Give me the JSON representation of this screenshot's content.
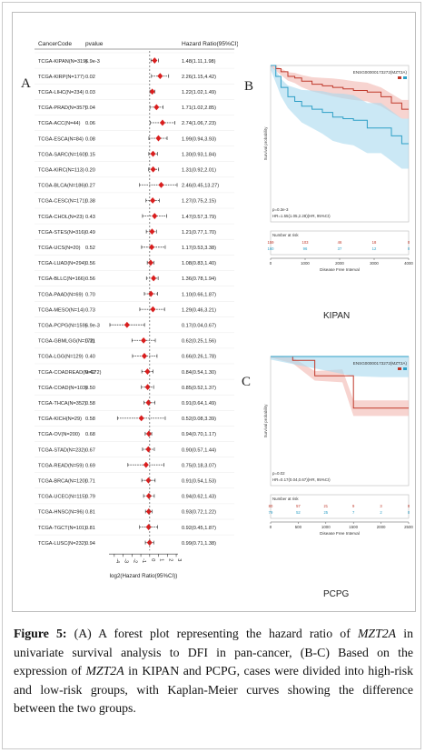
{
  "caption": {
    "label": "Figure 5:",
    "part1": "(A) A forest plot representing the hazard ratio of",
    "gene": "MZT2A",
    "part2": "in univariate survival analysis to DFI in pan-cancer, (B-C) Based on the expression of",
    "part3": "in KIPAN and PCPG, cases were divided into high-risk and low-risk groups, with Kaplan-Meier curves showing the difference between the two groups."
  },
  "panels": {
    "a": "A",
    "b": "B",
    "c": "C"
  },
  "chart_data": [
    {
      "type": "scatter",
      "panel": "A",
      "columns": [
        "CancerCode",
        "pvalue",
        "Hazard Ratio(95%CI)"
      ],
      "xlabel": "log2(Hazard Ratio(95%CI))",
      "xlim": [
        -4.6,
        3.2
      ],
      "xticks": [
        "-4",
        "-3",
        "-2",
        "-1",
        "0",
        "1",
        "2",
        "3"
      ],
      "rows": [
        {
          "code": "TCGA-KIPAN(N=319)",
          "p": "6.9e-3",
          "hr": "1.48(1.11,1.98)",
          "est": 0.56,
          "lo": 0.15,
          "hi": 0.99
        },
        {
          "code": "TCGA-KIRP(N=177)",
          "p": "0.02",
          "hr": "2.26(1.15,4.42)",
          "est": 1.18,
          "lo": 0.2,
          "hi": 2.14
        },
        {
          "code": "TCGA-LIHC(N=234)",
          "p": "0.03",
          "hr": "1.22(1.02,1.49)",
          "est": 0.29,
          "lo": 0.03,
          "hi": 0.58
        },
        {
          "code": "TCGA-PRAD(N=357)",
          "p": "0.04",
          "hr": "1.71(1.02,2.85)",
          "est": 0.77,
          "lo": 0.03,
          "hi": 1.51
        },
        {
          "code": "TCGA-ACC(N=44)",
          "p": "0.06",
          "hr": "2.74(1.06,7.23)",
          "est": 1.45,
          "lo": 0.08,
          "hi": 2.85
        },
        {
          "code": "TCGA-ESCA(N=84)",
          "p": "0.08",
          "hr": "1.99(0.94,3.93)",
          "est": 0.99,
          "lo": -0.09,
          "hi": 1.97
        },
        {
          "code": "TCGA-SARC(N=160)",
          "p": "0.15",
          "hr": "1.30(0.93,1.84)",
          "est": 0.38,
          "lo": -0.1,
          "hi": 0.88
        },
        {
          "code": "TCGA-KIRC(N=113)",
          "p": "0.20",
          "hr": "1.31(0.92,2.01)",
          "est": 0.39,
          "lo": -0.12,
          "hi": 1.01
        },
        {
          "code": "TCGA-BLCA(N=186)",
          "p": "0.27",
          "hr": "2.46(0.45,13.27)",
          "est": 1.3,
          "lo": -1.15,
          "hi": 3.1
        },
        {
          "code": "TCGA-CESC(N=171)",
          "p": "0.38",
          "hr": "1.27(0.75,2.15)",
          "est": 0.34,
          "lo": -0.42,
          "hi": 1.1
        },
        {
          "code": "TCGA-CHOL(N=23)",
          "p": "0.43",
          "hr": "1.47(0.57,3.79)",
          "est": 0.56,
          "lo": -0.81,
          "hi": 1.92
        },
        {
          "code": "TCGA-STES(N=316)",
          "p": "0.49",
          "hr": "1.21(0.77,1.70)",
          "est": 0.27,
          "lo": -0.38,
          "hi": 0.77
        },
        {
          "code": "TCGA-UCS(N=20)",
          "p": "0.52",
          "hr": "1.17(0.53,3.38)",
          "est": 0.23,
          "lo": -0.92,
          "hi": 1.76
        },
        {
          "code": "TCGA-LUAD(N=294)",
          "p": "0.56",
          "hr": "1.08(0.83,1.40)",
          "est": 0.11,
          "lo": -0.27,
          "hi": 0.49
        },
        {
          "code": "TCGA-BLLC(N=166)",
          "p": "0.56",
          "hr": "1.36(0.78,1.94)",
          "est": 0.44,
          "lo": -0.36,
          "hi": 0.96
        },
        {
          "code": "TCGA-PAAD(N=69)",
          "p": "0.70",
          "hr": "1.10(0.66,1.87)",
          "est": 0.14,
          "lo": -0.6,
          "hi": 0.9
        },
        {
          "code": "TCGA-MESO(N=14)",
          "p": "0.73",
          "hr": "1.29(0.46,3.21)",
          "est": 0.37,
          "lo": -1.12,
          "hi": 1.68
        },
        {
          "code": "TCGA-PCPG(N=159)",
          "p": "6.9e-3",
          "hr": "0.17(0.04,0.67)",
          "est": -2.56,
          "lo": -4.5,
          "hi": -0.58
        },
        {
          "code": "TCGA-GBMLGG(N=172)",
          "p": "0.31",
          "hr": "0.62(0.25,1.56)",
          "est": -0.69,
          "lo": -2.0,
          "hi": 0.64
        },
        {
          "code": "TCGA-LGG(N=129)",
          "p": "0.40",
          "hr": "0.66(0.26,1.78)",
          "est": -0.6,
          "lo": -1.94,
          "hi": 0.83
        },
        {
          "code": "TCGA-COADREAD(N=172)",
          "p": "0.42",
          "hr": "0.84(0.54,1.30)",
          "est": -0.25,
          "lo": -0.89,
          "hi": 0.38
        },
        {
          "code": "TCGA-COAD(N=103)",
          "p": "0.50",
          "hr": "0.85(0.52,1.37)",
          "est": -0.23,
          "lo": -0.94,
          "hi": 0.45
        },
        {
          "code": "TCGA-THCA(N=352)",
          "p": "0.58",
          "hr": "0.91(0.64,1.49)",
          "est": -0.14,
          "lo": -0.64,
          "hi": 0.58
        },
        {
          "code": "TCGA-KICH(N=29)",
          "p": "0.58",
          "hr": "0.52(0.08,3.39)",
          "est": -0.94,
          "lo": -3.64,
          "hi": 1.76
        },
        {
          "code": "TCGA-OV(N=200)",
          "p": "0.68",
          "hr": "0.94(0.70,1.17)",
          "est": -0.09,
          "lo": -0.51,
          "hi": 0.23
        },
        {
          "code": "TCGA-STAD(N=232)",
          "p": "0.67",
          "hr": "0.90(0.57,1.44)",
          "est": -0.15,
          "lo": -0.81,
          "hi": 0.53
        },
        {
          "code": "TCGA-READ(N=59)",
          "p": "0.69",
          "hr": "0.75(0.18,3.07)",
          "est": -0.41,
          "lo": -2.47,
          "hi": 1.62
        },
        {
          "code": "TCGA-BRCA(N=120)",
          "p": "0.71",
          "hr": "0.91(0.54,1.53)",
          "est": -0.14,
          "lo": -0.89,
          "hi": 0.61
        },
        {
          "code": "TCGA-UCEC(N=115)",
          "p": "0.79",
          "hr": "0.94(0.62,1.43)",
          "est": -0.09,
          "lo": -0.69,
          "hi": 0.52
        },
        {
          "code": "TCGA-HNSC(N=96)",
          "p": "0.81",
          "hr": "0.93(0.72,1.22)",
          "est": -0.1,
          "lo": -0.47,
          "hi": 0.29
        },
        {
          "code": "TCGA-TGCT(N=101)",
          "p": "0.81",
          "hr": "0.92(0.45,1.87)",
          "est": -0.12,
          "lo": -1.15,
          "hi": 0.9
        },
        {
          "code": "TCGA-LUSC(N=232)",
          "p": "0.94",
          "hr": "0.99(0.71,1.38)",
          "est": -0.01,
          "lo": -0.49,
          "hi": 0.46
        }
      ]
    },
    {
      "type": "line",
      "panel": "B",
      "dataset": "KIPAN",
      "legend_title": "ENSG00000173272(MZT2A)",
      "legend_position": "top-right",
      "ylabel": "Survival probability",
      "xlabel": "Disease Free Interval",
      "xticks": [
        "0",
        "1000",
        "2000",
        "3000",
        "4000"
      ],
      "pvalue": "p=0.3e-3",
      "hr_text": "HR=1.55(1.05,2.28)(HR, 95%CI)",
      "risk_table_title": "Number at risk",
      "xlim": [
        0,
        4000
      ],
      "ylim": [
        0,
        1
      ],
      "series": [
        {
          "color": "#c0392b",
          "band": "#f2b8b0",
          "x": [
            0,
            150,
            300,
            500,
            700,
            900,
            1200,
            1500,
            1800,
            2100,
            2400,
            2800,
            3200,
            3500,
            3800,
            4000
          ],
          "y": [
            1.0,
            0.98,
            0.96,
            0.93,
            0.92,
            0.9,
            0.88,
            0.87,
            0.86,
            0.85,
            0.84,
            0.83,
            0.8,
            0.76,
            0.72,
            0.72
          ]
        },
        {
          "color": "#2e9fc6",
          "band": "#a9d9ef",
          "x": [
            0,
            150,
            300,
            500,
            700,
            900,
            1200,
            1500,
            1800,
            2100,
            2400,
            2800,
            3200,
            3500,
            3800,
            4000
          ],
          "y": [
            1.0,
            0.93,
            0.86,
            0.8,
            0.77,
            0.74,
            0.72,
            0.7,
            0.67,
            0.66,
            0.65,
            0.6,
            0.6,
            0.55,
            0.5,
            0.5
          ]
        }
      ],
      "risk_rows": [
        [
          "159",
          "103",
          "46",
          "18",
          "0"
        ],
        [
          "160",
          "96",
          "37",
          "12",
          "0"
        ]
      ],
      "label_below": "KIPAN"
    },
    {
      "type": "line",
      "panel": "C",
      "dataset": "PCPG",
      "legend_title": "ENSG00000173272(MZT2A)",
      "legend_position": "top-right",
      "ylabel": "Survival probability",
      "xlabel": "Disease Free Interval",
      "xticks": [
        "0",
        "500",
        "1000",
        "1500",
        "2000",
        "2500"
      ],
      "pvalue": "p=0.02",
      "hr_text": "HR=0.17(0.04,0.67)(HR, 95%CI)",
      "risk_table_title": "Number at risk",
      "xlim": [
        0,
        2500
      ],
      "ylim": [
        0,
        1
      ],
      "series": [
        {
          "color": "#c0392b",
          "band": "#f2b8b0",
          "x": [
            0,
            400,
            800,
            1300,
            1500,
            2000,
            2500
          ],
          "y": [
            1.0,
            0.97,
            0.85,
            0.85,
            0.6,
            0.6,
            0.6
          ]
        },
        {
          "color": "#2e9fc6",
          "band": "#a9d9ef",
          "x": [
            0,
            500,
            1000,
            1500,
            2000,
            2500
          ],
          "y": [
            1.0,
            1.0,
            1.0,
            1.0,
            1.0,
            1.0
          ]
        }
      ],
      "risk_rows": [
        [
          "80",
          "57",
          "21",
          "9",
          "3",
          "0"
        ],
        [
          "79",
          "52",
          "25",
          "7",
          "2",
          "0"
        ]
      ],
      "label_below": "PCPG"
    }
  ]
}
